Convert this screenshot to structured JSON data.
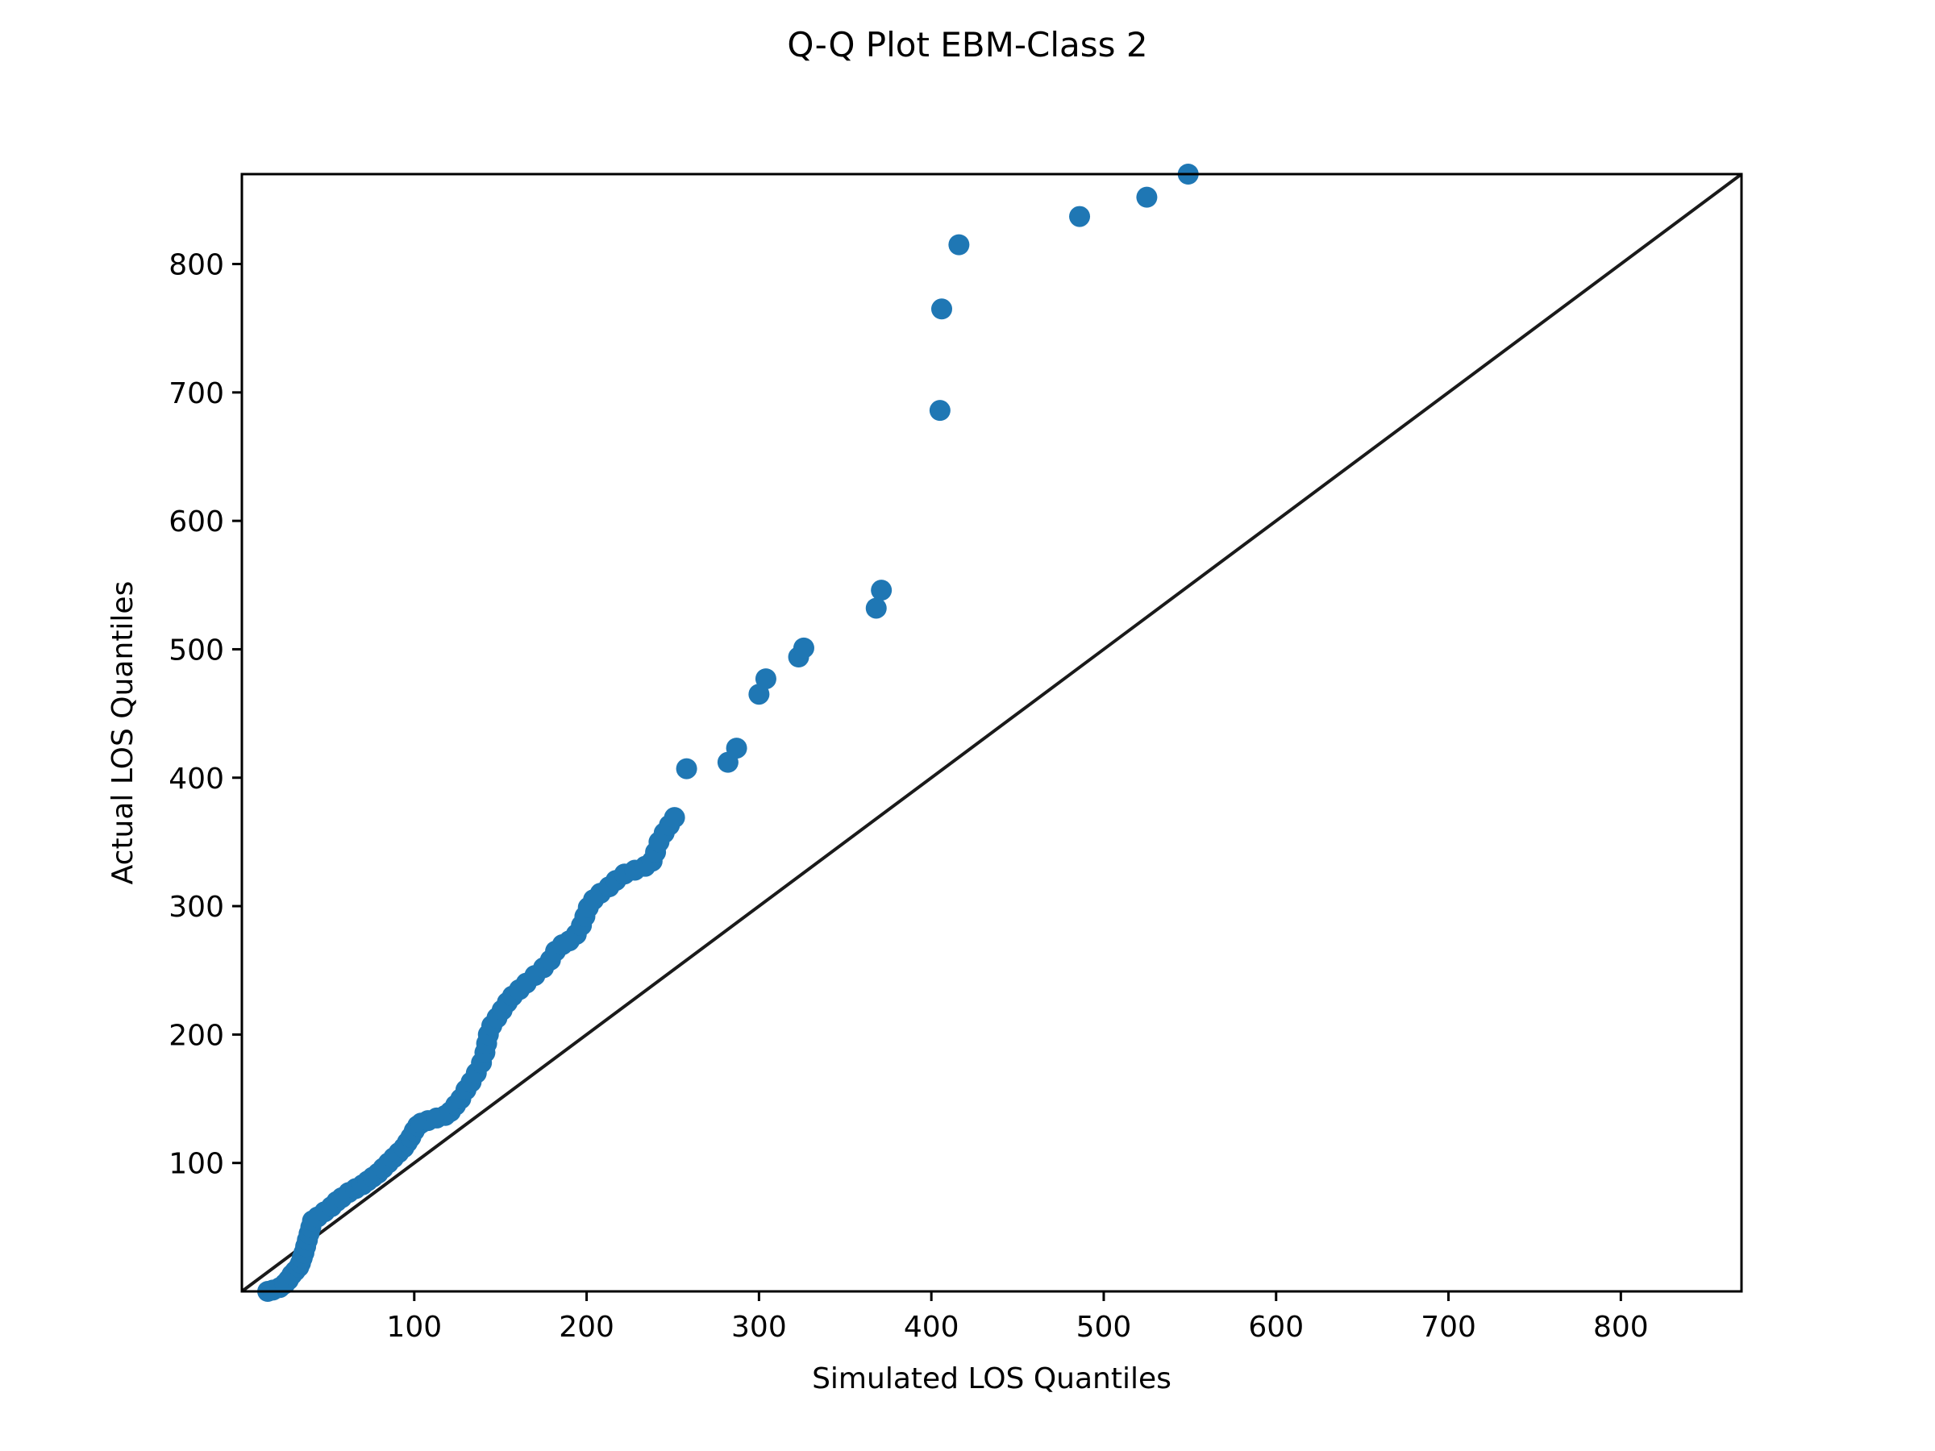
{
  "chart_data": {
    "type": "scatter",
    "title": "Q-Q Plot EBM-Class 2",
    "xlabel": "Simulated LOS Quantiles",
    "ylabel": "Actual LOS Quantiles",
    "xlim": [
      0,
      870
    ],
    "ylim": [
      0,
      870
    ],
    "xticks": [
      100,
      200,
      300,
      400,
      500,
      600,
      700,
      800
    ],
    "yticks": [
      100,
      200,
      300,
      400,
      500,
      600,
      700,
      800
    ],
    "grid": false,
    "reference_line": {
      "from": [
        0,
        0
      ],
      "to": [
        870,
        870
      ],
      "color": "#1a1a1a"
    },
    "marker_color": "#1f77b4",
    "points": [
      [
        15,
        0
      ],
      [
        18,
        1
      ],
      [
        22,
        3
      ],
      [
        25,
        6
      ],
      [
        27,
        9
      ],
      [
        29,
        13
      ],
      [
        31,
        16
      ],
      [
        33,
        19
      ],
      [
        34,
        22
      ],
      [
        35,
        26
      ],
      [
        36,
        30
      ],
      [
        37,
        35
      ],
      [
        38,
        40
      ],
      [
        39,
        45
      ],
      [
        40,
        50
      ],
      [
        41,
        55
      ],
      [
        44,
        58
      ],
      [
        48,
        62
      ],
      [
        52,
        66
      ],
      [
        55,
        70
      ],
      [
        58,
        73
      ],
      [
        62,
        77
      ],
      [
        66,
        80
      ],
      [
        70,
        83
      ],
      [
        73,
        86
      ],
      [
        76,
        89
      ],
      [
        79,
        92
      ],
      [
        82,
        96
      ],
      [
        85,
        100
      ],
      [
        88,
        104
      ],
      [
        91,
        108
      ],
      [
        94,
        112
      ],
      [
        96,
        116
      ],
      [
        98,
        120
      ],
      [
        100,
        125
      ],
      [
        102,
        129
      ],
      [
        104,
        131
      ],
      [
        108,
        133
      ],
      [
        113,
        135
      ],
      [
        118,
        137
      ],
      [
        121,
        140
      ],
      [
        124,
        145
      ],
      [
        127,
        150
      ],
      [
        130,
        157
      ],
      [
        133,
        163
      ],
      [
        136,
        170
      ],
      [
        139,
        178
      ],
      [
        141,
        186
      ],
      [
        142,
        193
      ],
      [
        143,
        200
      ],
      [
        145,
        207
      ],
      [
        148,
        213
      ],
      [
        151,
        219
      ],
      [
        154,
        225
      ],
      [
        157,
        230
      ],
      [
        161,
        235
      ],
      [
        165,
        240
      ],
      [
        170,
        246
      ],
      [
        175,
        252
      ],
      [
        179,
        258
      ],
      [
        182,
        265
      ],
      [
        186,
        270
      ],
      [
        190,
        273
      ],
      [
        194,
        278
      ],
      [
        197,
        285
      ],
      [
        199,
        292
      ],
      [
        201,
        299
      ],
      [
        204,
        305
      ],
      [
        208,
        310
      ],
      [
        213,
        315
      ],
      [
        217,
        320
      ],
      [
        222,
        325
      ],
      [
        228,
        328
      ],
      [
        234,
        331
      ],
      [
        238,
        335
      ],
      [
        240,
        342
      ],
      [
        242,
        350
      ],
      [
        245,
        357
      ],
      [
        248,
        363
      ],
      [
        251,
        369
      ],
      [
        258,
        407
      ],
      [
        282,
        412
      ],
      [
        287,
        423
      ],
      [
        300,
        465
      ],
      [
        304,
        477
      ],
      [
        323,
        494
      ],
      [
        326,
        501
      ],
      [
        368,
        532
      ],
      [
        371,
        546
      ],
      [
        405,
        686
      ],
      [
        406,
        765
      ],
      [
        416,
        815
      ],
      [
        486,
        837
      ],
      [
        525,
        852
      ],
      [
        549,
        870
      ]
    ]
  }
}
